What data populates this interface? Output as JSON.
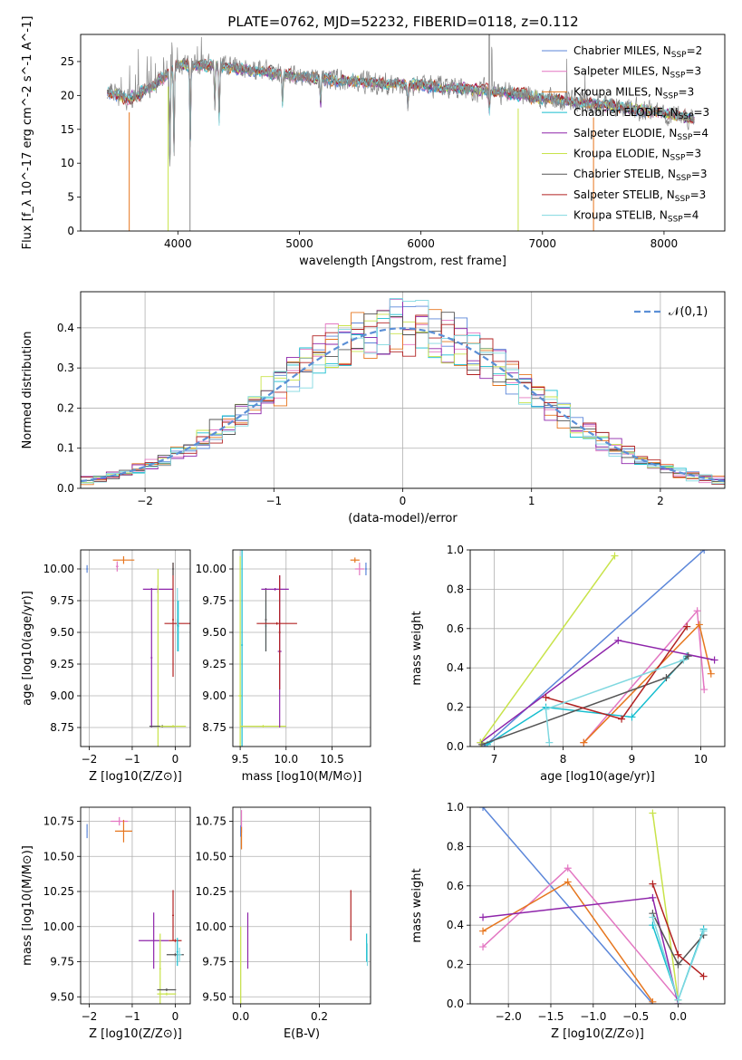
{
  "title": "PLATE=0762, MJD=52232, FIBERID=0118, z=0.112",
  "series": [
    {
      "name": "Chabrier MILES, N_SSP=2",
      "label_main": "Chabrier MILES, N",
      "label_sub": "SSP",
      "label_tail": "=2",
      "color": "#5b86d9"
    },
    {
      "name": "Salpeter MILES, N_SSP=3",
      "label_main": "Salpeter MILES, N",
      "label_sub": "SSP",
      "label_tail": "=3",
      "color": "#e377c2"
    },
    {
      "name": "Kroupa MILES, N_SSP=3",
      "label_main": "Kroupa MILES, N",
      "label_sub": "SSP",
      "label_tail": "=3",
      "color": "#e6761e"
    },
    {
      "name": "Chabrier ELODIE, N_SSP=3",
      "label_main": "Chabrier ELODIE, N",
      "label_sub": "SSP",
      "label_tail": "=3",
      "color": "#17becf"
    },
    {
      "name": "Salpeter ELODIE, N_SSP=4",
      "label_main": "Salpeter ELODIE, N",
      "label_sub": "SSP",
      "label_tail": "=4",
      "color": "#8e24aa"
    },
    {
      "name": "Kroupa ELODIE, N_SSP=3",
      "label_main": "Kroupa ELODIE, N",
      "label_sub": "SSP",
      "label_tail": "=3",
      "color": "#c8e34a"
    },
    {
      "name": "Chabrier STELIB, N_SSP=3",
      "label_main": "Chabrier STELIB, N",
      "label_sub": "SSP",
      "label_tail": "=3",
      "color": "#555555"
    },
    {
      "name": "Salpeter STELIB, N_SSP=3",
      "label_main": "Salpeter STELIB, N",
      "label_sub": "SSP",
      "label_tail": "=3",
      "color": "#b22222"
    },
    {
      "name": "Kroupa STELIB, N_SSP=4",
      "label_main": "Kroupa STELIB, N",
      "label_sub": "SSP",
      "label_tail": "=4",
      "color": "#80d8e0"
    }
  ],
  "chart_data": [
    {
      "id": "spectrum",
      "type": "line",
      "xlabel": "wavelength [Angstrom, rest frame]",
      "ylabel": "Flux [f_λ 10^-17 erg cm^-2 s^-1 A^-1]",
      "xlim": [
        3200,
        8500
      ],
      "ylim": [
        0,
        29
      ],
      "xticks": [
        4000,
        5000,
        6000,
        7000,
        8000
      ],
      "yticks": [
        0,
        5,
        10,
        15,
        20,
        25
      ],
      "grid": false,
      "legend": "top-right",
      "observed_color": "#888888",
      "continuum": [
        [
          3420,
          20.5
        ],
        [
          3600,
          19.5
        ],
        [
          3800,
          21.5
        ],
        [
          4000,
          24.5
        ],
        [
          4200,
          24.5
        ],
        [
          4500,
          24
        ],
        [
          5000,
          22.8
        ],
        [
          5500,
          22
        ],
        [
          6000,
          21.4
        ],
        [
          6500,
          20.8
        ],
        [
          7000,
          19.6
        ],
        [
          7500,
          18.6
        ],
        [
          8000,
          17.4
        ],
        [
          8250,
          16.5
        ]
      ],
      "absorption_lines": [
        [
          3934,
          14
        ],
        [
          3968,
          12
        ],
        [
          4102,
          12
        ],
        [
          4304,
          6
        ],
        [
          4340,
          8
        ],
        [
          4861,
          5
        ],
        [
          5175,
          4
        ],
        [
          5892,
          3
        ],
        [
          6563,
          3
        ]
      ],
      "emission_lines": [
        [
          6563,
          24
        ],
        [
          6583,
          6
        ],
        [
          7200,
          6
        ],
        [
          7350,
          5
        ]
      ],
      "dropouts": [
        [
          3600,
          "#e6761e"
        ],
        [
          3920,
          "#c8e34a"
        ],
        [
          4100,
          "#888888"
        ],
        [
          6800,
          "#c8e34a"
        ],
        [
          7420,
          "#e6761e"
        ]
      ]
    },
    {
      "id": "residual-distribution",
      "type": "line",
      "xlabel": "(data-model)/error",
      "ylabel": "Normed distribution",
      "xlim": [
        -2.5,
        2.5
      ],
      "ylim": [
        0,
        0.49
      ],
      "xticks": [
        -2,
        -1,
        0,
        1,
        2
      ],
      "yticks": [
        0.0,
        0.1,
        0.2,
        0.3,
        0.4
      ],
      "grid": true,
      "legend": "top-right",
      "reference_label": "𝒩(0,1)",
      "reference_color": "#5b8fd6",
      "bin_width": 0.1
    },
    {
      "id": "age-vs-Z",
      "type": "scatter",
      "xlabel": "Z [log10(Z/Z⊙)]",
      "ylabel": "age [log10(age/yr)]",
      "xlim": [
        -2.2,
        0.35
      ],
      "ylim": [
        8.6,
        10.15
      ],
      "xticks": [
        -2,
        -1,
        0
      ],
      "yticks": [
        8.75,
        9.0,
        9.25,
        9.5,
        9.75,
        10.0
      ],
      "grid": true,
      "points": [
        {
          "s": 0,
          "x": -2.05,
          "y": 10.0,
          "ex": 0.02,
          "ey": 0.03
        },
        {
          "s": 1,
          "x": -1.35,
          "y": 10.02,
          "ex": 0.03,
          "ey": 0.04
        },
        {
          "s": 2,
          "x": -1.2,
          "y": 10.07,
          "ex": 0.25,
          "ey": 0.03
        },
        {
          "s": 4,
          "x": -0.4,
          "y": 9.84,
          "ex": 0.35,
          "ey": 0.03
        },
        {
          "s": 4,
          "x": -0.55,
          "y": 9.3,
          "ex": 0.02,
          "ey": 0.55
        },
        {
          "s": 5,
          "x": -0.4,
          "y": 9.0,
          "ex": 0.02,
          "ey": 1.0
        },
        {
          "s": 6,
          "x": -0.3,
          "y": 8.76,
          "ex": 0.3,
          "ey": 0.01
        },
        {
          "s": 5,
          "x": -0.05,
          "y": 8.76,
          "ex": 0.3,
          "ey": 0.01
        },
        {
          "s": 7,
          "x": -0.05,
          "y": 9.6,
          "ex": 0.02,
          "ey": 0.45
        },
        {
          "s": 7,
          "x": 0.05,
          "y": 9.57,
          "ex": 0.3,
          "ey": 0.02
        },
        {
          "s": 8,
          "x": 0.05,
          "y": 9.6,
          "ex": 0.02,
          "ey": 0.25
        },
        {
          "s": 3,
          "x": 0.07,
          "y": 9.55,
          "ex": 0.02,
          "ey": 0.2
        },
        {
          "s": 6,
          "x": -0.05,
          "y": 10.0,
          "ex": 0.02,
          "ey": 0.05
        }
      ]
    },
    {
      "id": "age-vs-mass",
      "type": "scatter",
      "xlabel": "mass [log10(M/M⊙)]",
      "ylabel": "",
      "xlim": [
        9.42,
        10.92
      ],
      "ylim": [
        8.6,
        10.15
      ],
      "xticks": [
        9.5,
        10.0,
        10.5
      ],
      "yticks": [
        8.75,
        9.0,
        9.25,
        9.5,
        9.75,
        10.0
      ],
      "grid": true,
      "points": [
        {
          "s": 5,
          "x": 9.5,
          "y": 9.0,
          "ex": 0.02,
          "ey": 1.1
        },
        {
          "s": 3,
          "x": 9.52,
          "y": 9.4,
          "ex": 0.01,
          "ey": 1.0
        },
        {
          "s": 5,
          "x": 9.75,
          "y": 8.76,
          "ex": 0.25,
          "ey": 0.01
        },
        {
          "s": 8,
          "x": 9.78,
          "y": 9.55,
          "ex": 0.01,
          "ey": 0.2
        },
        {
          "s": 6,
          "x": 9.78,
          "y": 9.6,
          "ex": 0.01,
          "ey": 0.25
        },
        {
          "s": 4,
          "x": 9.88,
          "y": 9.84,
          "ex": 0.15,
          "ey": 0.01
        },
        {
          "s": 4,
          "x": 9.93,
          "y": 9.35,
          "ex": 0.02,
          "ey": 0.6
        },
        {
          "s": 7,
          "x": 9.9,
          "y": 9.57,
          "ex": 0.22,
          "ey": 0.01
        },
        {
          "s": 7,
          "x": 9.93,
          "y": 9.5,
          "ex": 0.01,
          "ey": 0.45
        },
        {
          "s": 2,
          "x": 10.75,
          "y": 10.07,
          "ex": 0.05,
          "ey": 0.02
        },
        {
          "s": 1,
          "x": 10.8,
          "y": 10.0,
          "ex": 0.05,
          "ey": 0.05
        },
        {
          "s": 0,
          "x": 10.87,
          "y": 10.0,
          "ex": 0.01,
          "ey": 0.05
        }
      ]
    },
    {
      "id": "weight-vs-age",
      "type": "line",
      "xlabel": "age [log10(age/yr)]",
      "ylabel": "mass weight",
      "xlim": [
        6.65,
        10.35
      ],
      "ylim": [
        0,
        1.0
      ],
      "xticks": [
        7,
        8,
        9,
        10
      ],
      "yticks": [
        0.0,
        0.2,
        0.4,
        0.6,
        0.8,
        1.0
      ],
      "grid": true,
      "lines": [
        {
          "s": 0,
          "pts": [
            [
              6.85,
              0.0
            ],
            [
              10.05,
              1.0
            ]
          ]
        },
        {
          "s": 1,
          "pts": [
            [
              8.3,
              0.02
            ],
            [
              9.95,
              0.69
            ],
            [
              10.05,
              0.29
            ]
          ]
        },
        {
          "s": 2,
          "pts": [
            [
              8.3,
              0.02
            ],
            [
              9.98,
              0.62
            ],
            [
              10.15,
              0.37
            ]
          ]
        },
        {
          "s": 3,
          "pts": [
            [
              6.9,
              0.01
            ],
            [
              7.75,
              0.2
            ],
            [
              9.0,
              0.15
            ],
            [
              9.8,
              0.46
            ]
          ]
        },
        {
          "s": 4,
          "pts": [
            [
              6.8,
              0.02
            ],
            [
              8.8,
              0.54
            ],
            [
              10.2,
              0.44
            ]
          ]
        },
        {
          "s": 5,
          "pts": [
            [
              6.8,
              0.02
            ],
            [
              8.75,
              0.97
            ]
          ]
        },
        {
          "s": 6,
          "pts": [
            [
              6.82,
              0.01
            ],
            [
              9.5,
              0.35
            ],
            [
              9.82,
              0.46
            ]
          ]
        },
        {
          "s": 7,
          "pts": [
            [
              7.75,
              0.25
            ],
            [
              8.85,
              0.14
            ],
            [
              9.8,
              0.61
            ]
          ]
        },
        {
          "s": 8,
          "pts": [
            [
              7.8,
              0.02
            ],
            [
              7.75,
              0.19
            ],
            [
              9.75,
              0.44
            ]
          ]
        }
      ]
    },
    {
      "id": "mass-vs-Z",
      "type": "scatter",
      "xlabel": "Z [log10(Z/Z⊙)]",
      "ylabel": "mass [log10(M/M⊙)]",
      "xlim": [
        -2.2,
        0.35
      ],
      "ylim": [
        9.45,
        10.85
      ],
      "xticks": [
        -2,
        -1,
        0
      ],
      "yticks": [
        9.5,
        9.75,
        10.0,
        10.25,
        10.5,
        10.75
      ],
      "grid": true,
      "points": [
        {
          "s": 0,
          "x": -2.05,
          "y": 10.68,
          "ex": 0.01,
          "ey": 0.05
        },
        {
          "s": 1,
          "x": -1.3,
          "y": 10.75,
          "ex": 0.2,
          "ey": 0.03
        },
        {
          "s": 2,
          "x": -1.2,
          "y": 10.68,
          "ex": 0.2,
          "ey": 0.08
        },
        {
          "s": 4,
          "x": -0.5,
          "y": 9.9,
          "ex": 0.35,
          "ey": 0.2
        },
        {
          "s": 5,
          "x": -0.35,
          "y": 9.7,
          "ex": 0.02,
          "ey": 0.25
        },
        {
          "s": 6,
          "x": -0.2,
          "y": 9.55,
          "ex": 0.22,
          "ey": 0.01
        },
        {
          "s": 5,
          "x": -0.2,
          "y": 9.52,
          "ex": 0.22,
          "ey": 0.01
        },
        {
          "s": 7,
          "x": -0.05,
          "y": 10.08,
          "ex": 0.02,
          "ey": 0.18
        },
        {
          "s": 7,
          "x": 0.0,
          "y": 9.9,
          "ex": 0.15,
          "ey": 0.01
        },
        {
          "s": 6,
          "x": 0.0,
          "y": 9.8,
          "ex": 0.2,
          "ey": 0.01
        },
        {
          "s": 3,
          "x": 0.05,
          "y": 9.82,
          "ex": 0.02,
          "ey": 0.1
        },
        {
          "s": 8,
          "x": 0.1,
          "y": 9.8,
          "ex": 0.05,
          "ey": 0.05
        }
      ]
    },
    {
      "id": "mass-vs-EBV",
      "type": "scatter",
      "xlabel": "E(B-V)",
      "ylabel": "",
      "xlim": [
        -0.02,
        0.33
      ],
      "ylim": [
        9.45,
        10.85
      ],
      "xticks": [
        0.0,
        0.2
      ],
      "yticks": [
        9.5,
        9.75,
        10.0,
        10.25,
        10.5,
        10.75
      ],
      "grid": true,
      "points": [
        {
          "s": 0,
          "x": 0.0,
          "y": 10.68,
          "ex": 0,
          "ey": 0.04
        },
        {
          "s": 1,
          "x": 0.002,
          "y": 10.75,
          "ex": 0,
          "ey": 0.08
        },
        {
          "s": 2,
          "x": 0.002,
          "y": 10.63,
          "ex": 0,
          "ey": 0.08
        },
        {
          "s": 4,
          "x": 0.018,
          "y": 9.9,
          "ex": 0,
          "ey": 0.2
        },
        {
          "s": 5,
          "x": 0.0,
          "y": 9.7,
          "ex": 0,
          "ey": 0.3
        },
        {
          "s": 7,
          "x": 0.28,
          "y": 10.08,
          "ex": 0,
          "ey": 0.18
        },
        {
          "s": 3,
          "x": 0.32,
          "y": 9.85,
          "ex": 0,
          "ey": 0.1
        },
        {
          "s": 8,
          "x": 0.322,
          "y": 9.8,
          "ex": 0,
          "ey": 0.08
        }
      ]
    },
    {
      "id": "weight-vs-Z",
      "type": "line",
      "xlabel": "Z [log10(Z/Z⊙)]",
      "ylabel": "mass weight",
      "xlim": [
        -2.45,
        0.55
      ],
      "ylim": [
        0,
        1.0
      ],
      "xticks": [
        -2.0,
        -1.5,
        -1.0,
        -0.5,
        0.0
      ],
      "yticks": [
        0.0,
        0.2,
        0.4,
        0.6,
        0.8,
        1.0
      ],
      "grid": true,
      "lines": [
        {
          "s": 0,
          "pts": [
            [
              -2.3,
              1.0
            ],
            [
              -0.3,
              0.0
            ]
          ]
        },
        {
          "s": 1,
          "pts": [
            [
              -2.3,
              0.29
            ],
            [
              -1.3,
              0.69
            ],
            [
              0.0,
              0.02
            ]
          ]
        },
        {
          "s": 2,
          "pts": [
            [
              -2.3,
              0.37
            ],
            [
              -1.3,
              0.62
            ],
            [
              -0.3,
              0.01
            ]
          ]
        },
        {
          "s": 3,
          "pts": [
            [
              -0.3,
              0.4
            ],
            [
              0.0,
              0.02
            ],
            [
              0.3,
              0.38
            ]
          ]
        },
        {
          "s": 4,
          "pts": [
            [
              -2.3,
              0.44
            ],
            [
              -0.3,
              0.54
            ],
            [
              0.0,
              0.0
            ]
          ]
        },
        {
          "s": 5,
          "pts": [
            [
              -0.3,
              0.97
            ],
            [
              0.0,
              0.02
            ]
          ]
        },
        {
          "s": 6,
          "pts": [
            [
              -0.3,
              0.46
            ],
            [
              0.0,
              0.2
            ],
            [
              0.3,
              0.35
            ]
          ]
        },
        {
          "s": 7,
          "pts": [
            [
              -0.3,
              0.61
            ],
            [
              0.0,
              0.25
            ],
            [
              0.3,
              0.14
            ]
          ]
        },
        {
          "s": 8,
          "pts": [
            [
              -0.3,
              0.44
            ],
            [
              0.0,
              0.02
            ],
            [
              0.3,
              0.37
            ]
          ]
        }
      ]
    }
  ]
}
